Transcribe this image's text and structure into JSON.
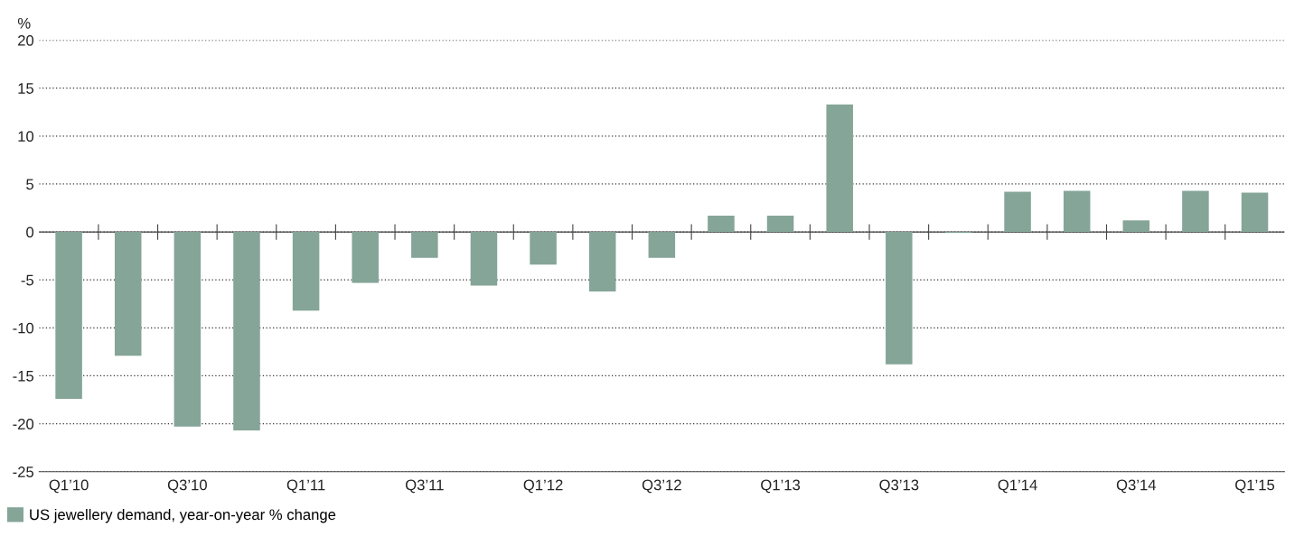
{
  "chart_data": {
    "type": "bar",
    "ylabel": "%",
    "categories": [
      "Q1’10",
      null,
      "Q3’10",
      null,
      "Q1’11",
      null,
      "Q3’11",
      null,
      "Q1’12",
      null,
      "Q3’12",
      null,
      "Q1’13",
      null,
      "Q3’13",
      null,
      "Q1’14",
      null,
      "Q3’14",
      null,
      "Q1’15"
    ],
    "series": [
      {
        "name": "US jewellery demand, year-on-year % change",
        "color": "#84a597",
        "values": [
          -17.4,
          -12.9,
          -20.3,
          -20.7,
          -8.2,
          -5.3,
          -2.7,
          -5.6,
          -3.4,
          -6.2,
          -2.7,
          1.7,
          1.7,
          13.3,
          -13.8,
          -0.1,
          4.2,
          4.3,
          1.2,
          4.3,
          4.1
        ]
      }
    ],
    "ylim": [
      -25,
      20
    ],
    "yticks": [
      -25,
      -20,
      -15,
      -10,
      -5,
      0,
      5,
      10,
      15,
      20
    ],
    "grid": "y",
    "legend": "bottom left"
  }
}
